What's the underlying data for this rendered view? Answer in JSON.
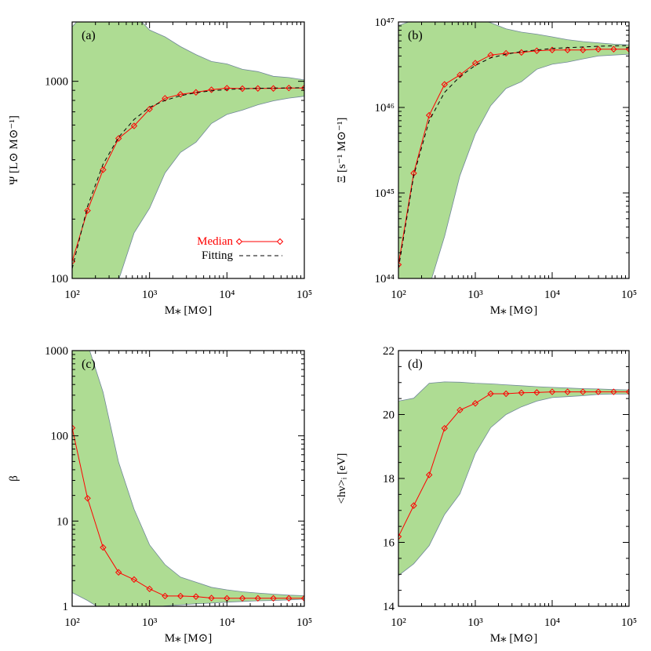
{
  "colors": {
    "band_fill": "#aedc93",
    "band_edge": "#70879a",
    "median": "#ff0000",
    "fitting": "#000000",
    "axes": "#000000"
  },
  "legend": {
    "median_label": "Median",
    "fitting_label": "Fitting"
  },
  "chart_data": [
    {
      "type": "line",
      "panel_label": "(a)",
      "xlabel": "M⁎ [M⊙]",
      "ylabel": "Ψ [L⊙ M⊙⁻¹]",
      "xscale": "log",
      "yscale": "log",
      "xlim": [
        100,
        100000
      ],
      "ylim": [
        100,
        2000
      ],
      "xticks": [
        {
          "v": 100,
          "label": "10²"
        },
        {
          "v": 1000,
          "label": "10³"
        },
        {
          "v": 10000,
          "label": "10⁴"
        },
        {
          "v": 100000,
          "label": "10⁵"
        }
      ],
      "yticks": [
        {
          "v": 100,
          "label": "100"
        },
        {
          "v": 1000,
          "label": "1000"
        }
      ],
      "legend": "bottom-right",
      "x": [
        100,
        158,
        251,
        398,
        631,
        1000,
        1585,
        2512,
        3981,
        6310,
        10000,
        15849,
        25119,
        39811,
        63096,
        100000
      ],
      "band_upper": [
        1890,
        2300,
        2300,
        2300,
        2200,
        1820,
        1680,
        1500,
        1366,
        1260,
        1225,
        1150,
        1120,
        1060,
        1045,
        1016
      ],
      "band_lower": [
        40,
        55,
        75,
        98,
        170,
        227,
        343,
        436,
        491,
        611,
        679,
        714,
        760,
        796,
        822,
        840
      ],
      "series": [
        {
          "name": "Median",
          "values": [
            122,
            221,
            356,
            513,
            594,
            723,
            820,
            859,
            879,
            906,
            923,
            918,
            920,
            920,
            925,
            925
          ]
        },
        {
          "name": "Fitting",
          "values": [
            112,
            232,
            380,
            520,
            640,
            738,
            800,
            845,
            875,
            895,
            908,
            916,
            921,
            924,
            926,
            928
          ]
        }
      ]
    },
    {
      "type": "line",
      "panel_label": "(b)",
      "xlabel": "M⁎ [M⊙]",
      "ylabel": "Ξ [s⁻¹ M⊙⁻¹]",
      "xscale": "log",
      "yscale": "log",
      "xlim": [
        100,
        100000
      ],
      "ylim": [
        1e+44,
        1e+47
      ],
      "xticks": [
        {
          "v": 100,
          "label": "10²"
        },
        {
          "v": 1000,
          "label": "10³"
        },
        {
          "v": 10000,
          "label": "10⁴"
        },
        {
          "v": 100000,
          "label": "10⁵"
        }
      ],
      "yticks": [
        {
          "v": 1e+44,
          "label": "10⁴⁴"
        },
        {
          "v": 1e+45,
          "label": "10⁴⁵"
        },
        {
          "v": 1e+46,
          "label": "10⁴⁶"
        },
        {
          "v": 1e+47,
          "label": "10⁴⁷"
        }
      ],
      "x": [
        100,
        158,
        251,
        398,
        631,
        1000,
        1585,
        2512,
        3981,
        6310,
        10000,
        15849,
        25119,
        39811,
        63096,
        100000
      ],
      "band_upper": [
        9.1e+46,
        1.05e+47,
        1.15e+47,
        1.15e+47,
        1.15e+47,
        1.1e+47,
        9.8e+46,
        8.3e+46,
        7.6e+46,
        7.2e+46,
        6.7e+46,
        6.2e+46,
        5.9e+46,
        5.7e+46,
        5.5e+46,
        5.4e+46
      ],
      "band_lower": [
        3e+43,
        5e+43,
        8e+43,
        3.1e+44,
        1.6e+45,
        4.9e+45,
        1.05e+46,
        1.67e+46,
        2e+46,
        2.8e+46,
        3.2e+46,
        3.4e+46,
        3.7e+46,
        4e+46,
        4.1e+46,
        4.2e+46
      ],
      "series": [
        {
          "name": "Median",
          "values": [
            1.45e+44,
            1.7e+45,
            8.1e+45,
            1.86e+46,
            2.4e+46,
            3.3e+46,
            4.1e+46,
            4.3e+46,
            4.4e+46,
            4.6e+46,
            4.7e+46,
            4.7e+46,
            4.7e+46,
            4.8e+46,
            4.8e+46,
            4.8e+46
          ]
        },
        {
          "name": "Fitting",
          "values": [
            1.3e+44,
            1.6e+45,
            7e+45,
            1.5e+46,
            2.3e+46,
            3.1e+46,
            3.8e+46,
            4.2e+46,
            4.5e+46,
            4.7e+46,
            4.9e+46,
            5e+46,
            5.1e+46,
            5.2e+46,
            5.25e+46,
            5.3e+46
          ]
        }
      ]
    },
    {
      "type": "line",
      "panel_label": "(c)",
      "xlabel": "M⁎ [M⊙]",
      "ylabel": "β",
      "xscale": "log",
      "yscale": "log",
      "xlim": [
        100,
        100000
      ],
      "ylim": [
        1,
        1000
      ],
      "xticks": [
        {
          "v": 100,
          "label": "10²"
        },
        {
          "v": 1000,
          "label": "10³"
        },
        {
          "v": 10000,
          "label": "10⁴"
        },
        {
          "v": 100000,
          "label": "10⁵"
        }
      ],
      "yticks": [
        {
          "v": 1,
          "label": "1"
        },
        {
          "v": 10,
          "label": "10"
        },
        {
          "v": 100,
          "label": "100"
        },
        {
          "v": 1000,
          "label": "1000"
        }
      ],
      "x": [
        100,
        158,
        251,
        398,
        631,
        1000,
        1585,
        2512,
        3981,
        6310,
        10000,
        15849,
        25119,
        39811,
        63096,
        100000
      ],
      "band_upper": [
        2000,
        1200,
        325,
        49,
        13.8,
        5.25,
        3.08,
        2.2,
        1.92,
        1.67,
        1.56,
        1.48,
        1.43,
        1.39,
        1.35,
        1.33
      ],
      "band_lower": [
        1.45,
        1.17,
        0.9,
        0.9,
        0.9,
        0.95,
        1.01,
        1.04,
        1.07,
        1.09,
        1.12,
        1.14,
        1.16,
        1.17,
        1.19,
        1.21
      ],
      "series": [
        {
          "name": "Median",
          "values": [
            124,
            18.5,
            4.9,
            2.5,
            2.06,
            1.6,
            1.32,
            1.32,
            1.3,
            1.25,
            1.24,
            1.24,
            1.24,
            1.24,
            1.24,
            1.24
          ]
        }
      ]
    },
    {
      "type": "line",
      "panel_label": "(d)",
      "xlabel": "M⁎ [M⊙]",
      "ylabel": "<hν>ᵢ [eV]",
      "xscale": "log",
      "yscale": "linear",
      "xlim": [
        100,
        100000
      ],
      "ylim": [
        14,
        22
      ],
      "xticks": [
        {
          "v": 100,
          "label": "10²"
        },
        {
          "v": 1000,
          "label": "10³"
        },
        {
          "v": 10000,
          "label": "10⁴"
        },
        {
          "v": 100000,
          "label": "10⁵"
        }
      ],
      "yticks": [
        {
          "v": 14,
          "label": "14"
        },
        {
          "v": 16,
          "label": "16"
        },
        {
          "v": 18,
          "label": "18"
        },
        {
          "v": 20,
          "label": "20"
        },
        {
          "v": 22,
          "label": "22"
        }
      ],
      "x": [
        100,
        158,
        251,
        398,
        631,
        1000,
        1585,
        2512,
        3981,
        6310,
        10000,
        15849,
        25119,
        39811,
        63096,
        100000
      ],
      "band_upper": [
        20.42,
        20.51,
        20.98,
        21.02,
        21.01,
        20.98,
        20.96,
        20.93,
        20.9,
        20.87,
        20.85,
        20.83,
        20.81,
        20.8,
        20.78,
        20.77
      ],
      "band_lower": [
        14.96,
        15.33,
        15.9,
        16.87,
        17.52,
        18.78,
        19.59,
        20.0,
        20.24,
        20.42,
        20.53,
        20.56,
        20.59,
        20.63,
        20.64,
        20.64
      ],
      "series": [
        {
          "name": "Median",
          "values": [
            16.18,
            17.15,
            18.11,
            19.57,
            20.14,
            20.35,
            20.65,
            20.65,
            20.68,
            20.69,
            20.71,
            20.71,
            20.71,
            20.71,
            20.71,
            20.71
          ]
        }
      ]
    }
  ]
}
